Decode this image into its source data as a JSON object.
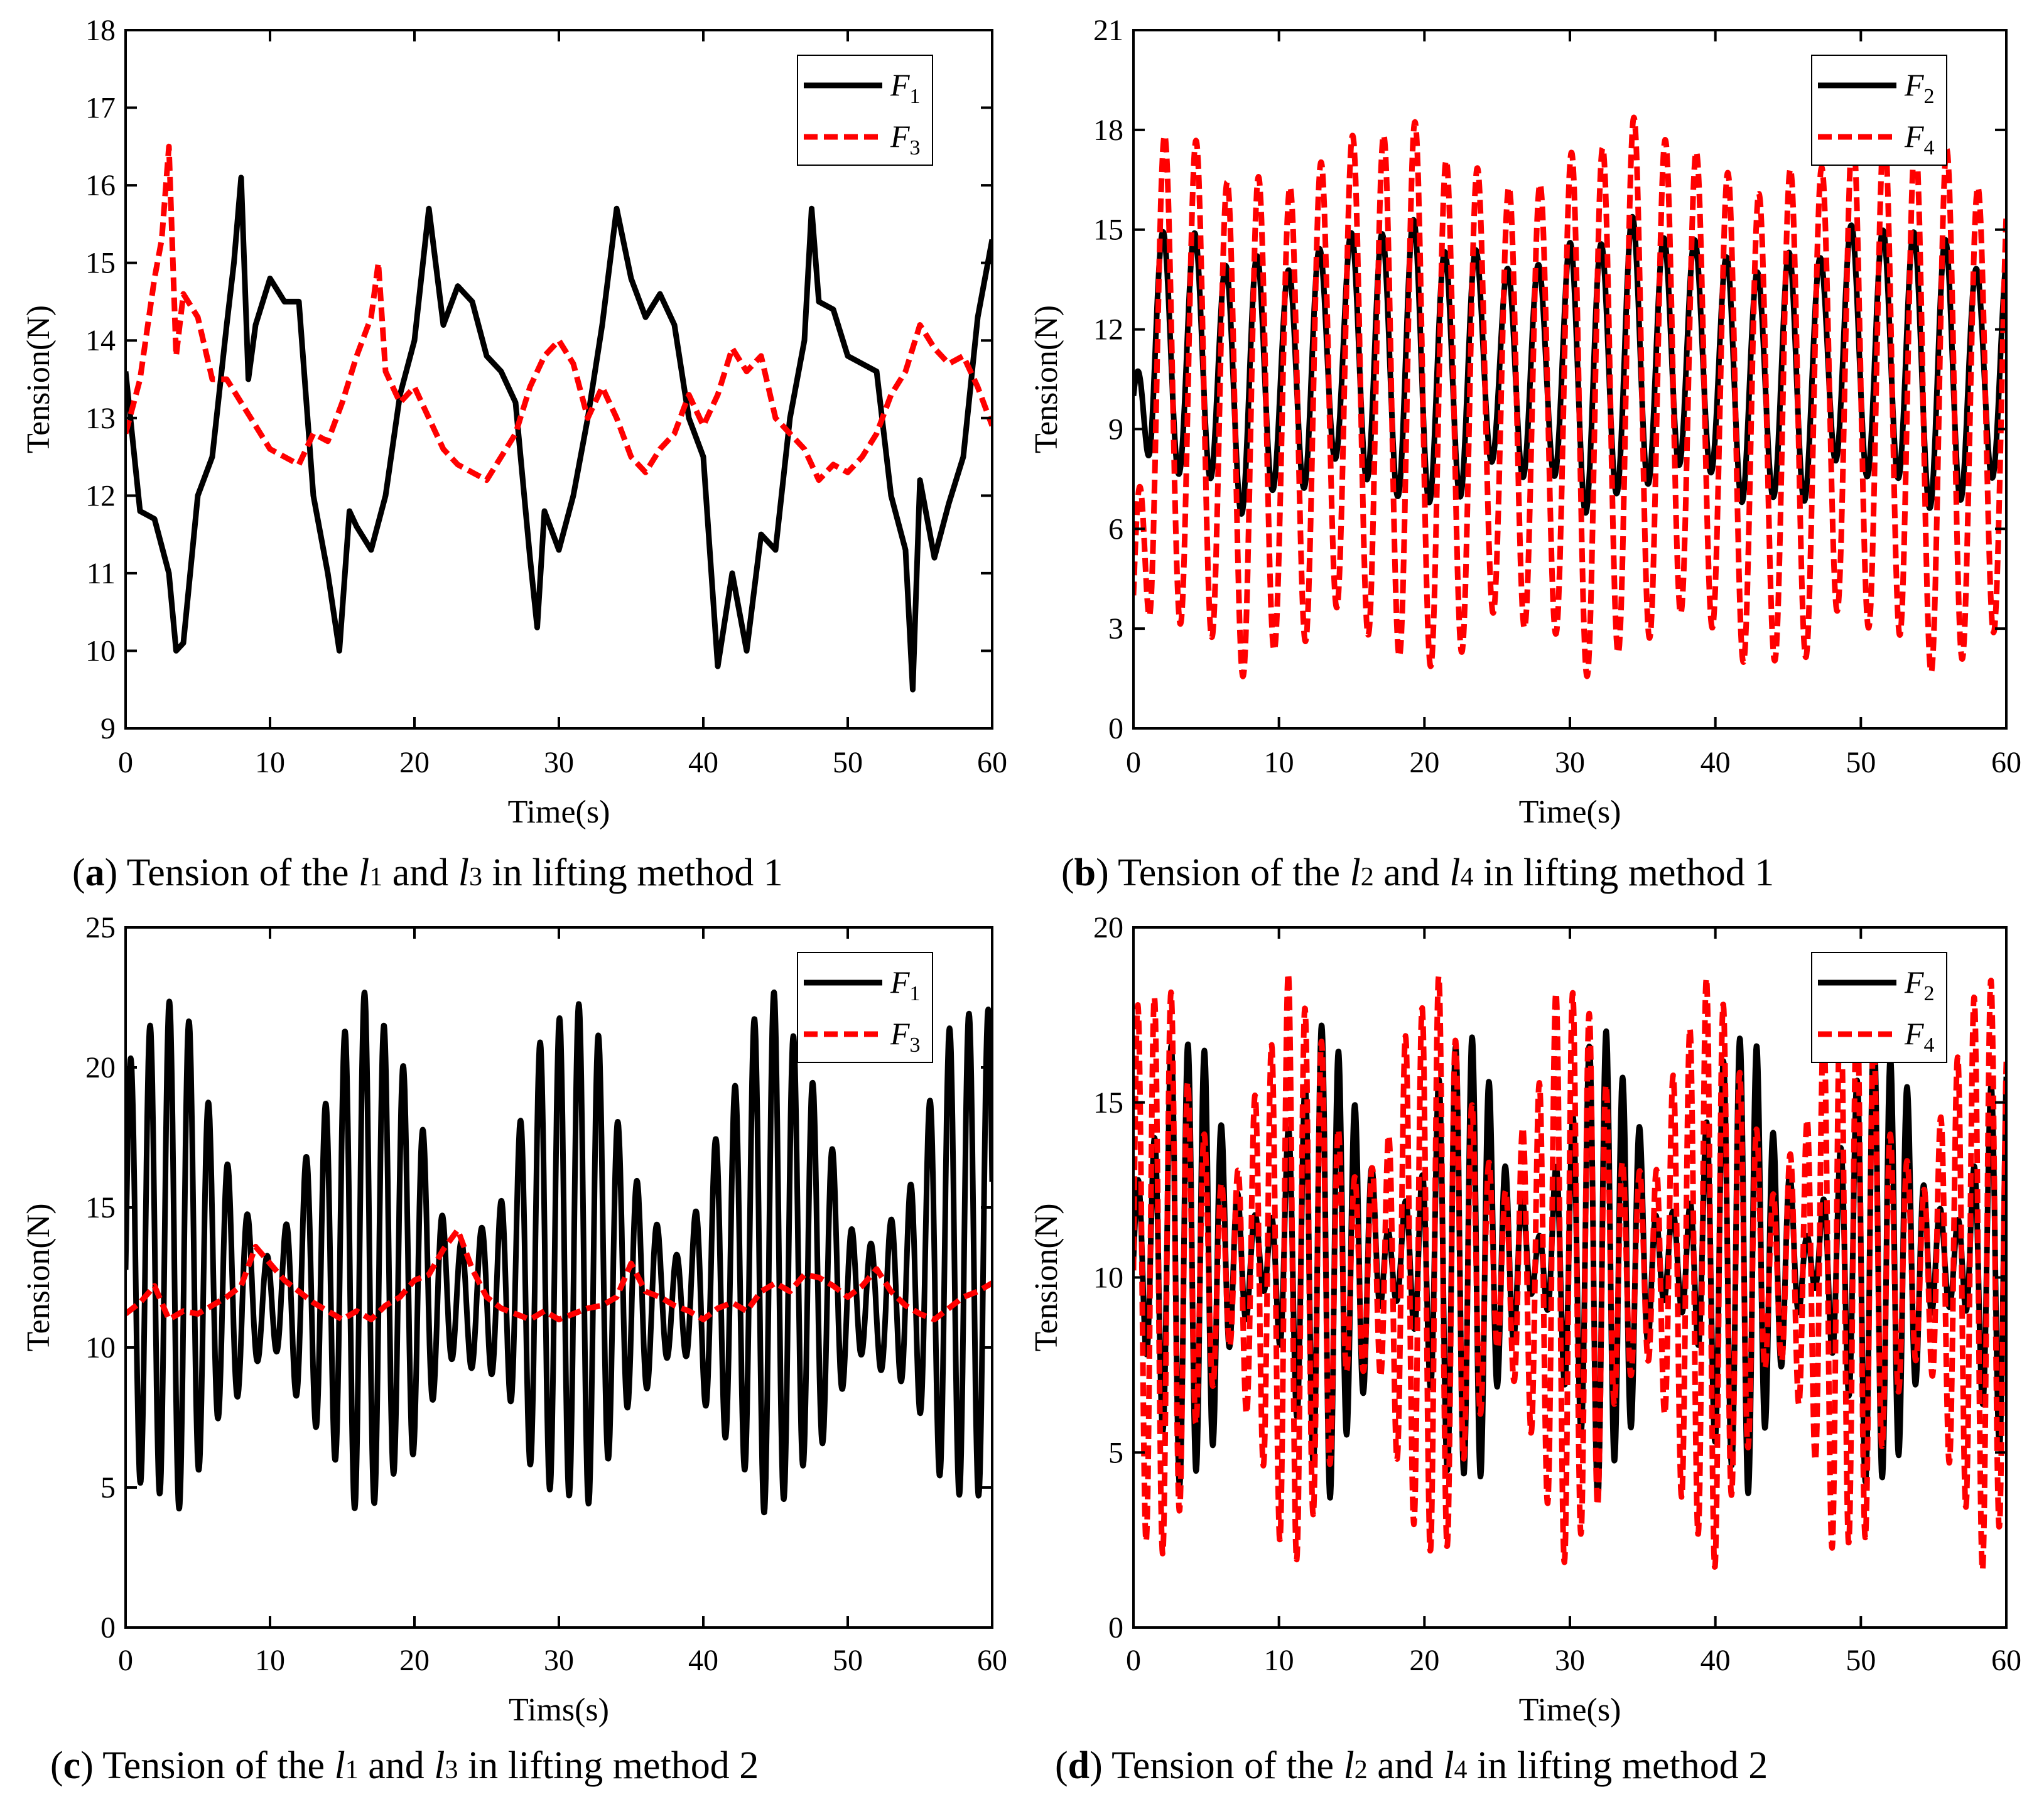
{
  "chart_data": [
    {
      "id": "a",
      "type": "line",
      "xlabel": "Time(s)",
      "ylabel": "Tension(N)",
      "xlim": [
        0,
        60
      ],
      "ylim": [
        9,
        18
      ],
      "xticks": [
        "0",
        "10",
        "20",
        "30",
        "40",
        "50",
        "60"
      ],
      "yticks": [
        "9",
        "10",
        "11",
        "12",
        "13",
        "14",
        "15",
        "16",
        "17",
        "18"
      ],
      "legend": {
        "position": "top-right",
        "entries": [
          {
            "main": "F",
            "sub": "1"
          },
          {
            "main": "F",
            "sub": "3"
          }
        ]
      },
      "caption": {
        "letter": "a",
        "pre": "Tension of the ",
        "v1": "l",
        "s1": "1",
        "mid": " and ",
        "v2": "l",
        "s2": "3",
        "post": " in lifting method 1"
      },
      "series": [
        {
          "name": "F1",
          "style": "solid",
          "color": "#000000",
          "x": [
            0,
            1,
            2,
            3,
            3.5,
            4,
            5,
            6,
            7,
            7.5,
            8,
            8.5,
            9,
            10,
            11,
            12,
            13,
            14,
            14.8,
            15.5,
            16,
            17,
            18,
            19,
            20,
            21,
            22,
            23,
            24,
            25,
            26,
            27,
            28,
            28.5,
            29,
            30,
            31,
            32,
            33,
            34,
            35,
            36,
            37,
            38,
            39,
            40,
            41,
            42,
            43,
            44,
            45,
            46,
            47,
            47.5,
            48,
            49,
            50,
            51,
            52,
            53,
            54,
            54.5,
            55,
            56,
            57,
            58,
            59,
            60
          ],
          "y": [
            13.6,
            11.8,
            11.7,
            11.0,
            10.0,
            10.1,
            12.0,
            12.5,
            14.2,
            15.0,
            16.1,
            13.5,
            14.2,
            14.8,
            14.5,
            14.5,
            12.0,
            11.0,
            10.0,
            11.8,
            11.6,
            11.3,
            12.0,
            13.3,
            14.0,
            15.7,
            14.2,
            14.7,
            14.5,
            13.8,
            13.6,
            13.2,
            11.2,
            10.3,
            11.8,
            11.3,
            12.0,
            13.0,
            14.2,
            15.7,
            14.8,
            14.3,
            14.6,
            14.2,
            13.0,
            12.5,
            9.8,
            11.0,
            10.0,
            11.5,
            11.3,
            13.0,
            14.0,
            15.7,
            14.5,
            14.4,
            13.8,
            13.7,
            13.6,
            12.0,
            11.3,
            9.5,
            12.2,
            11.2,
            11.9,
            12.5,
            14.3,
            15.3
          ]
        },
        {
          "name": "F3",
          "style": "dashed",
          "color": "#ff0000",
          "x": [
            0,
            1,
            2,
            2.5,
            3,
            3.5,
            4,
            5,
            6,
            7,
            8,
            9,
            10,
            11,
            12,
            13,
            14,
            15,
            16,
            17,
            17.5,
            18,
            19,
            20,
            21,
            22,
            23,
            24,
            25,
            26,
            27,
            28,
            29,
            30,
            31,
            32,
            33,
            34,
            35,
            36,
            37,
            38,
            39,
            40,
            41,
            42,
            43,
            44,
            45,
            46,
            47,
            48,
            49,
            50,
            51,
            52,
            53,
            54,
            55,
            56,
            57,
            58,
            59,
            60
          ],
          "y": [
            12.8,
            13.5,
            14.8,
            15.3,
            16.5,
            13.8,
            14.6,
            14.3,
            13.5,
            13.5,
            13.2,
            12.9,
            12.6,
            12.5,
            12.4,
            12.8,
            12.7,
            13.2,
            13.8,
            14.3,
            15.0,
            13.6,
            13.2,
            13.4,
            13.0,
            12.6,
            12.4,
            12.3,
            12.2,
            12.5,
            12.8,
            13.4,
            13.8,
            14.0,
            13.7,
            13.0,
            13.4,
            13.0,
            12.5,
            12.3,
            12.6,
            12.8,
            13.3,
            12.9,
            13.3,
            13.9,
            13.6,
            13.8,
            13.0,
            12.8,
            12.6,
            12.2,
            12.4,
            12.3,
            12.5,
            12.8,
            13.3,
            13.6,
            14.2,
            13.9,
            13.7,
            13.8,
            13.4,
            12.9
          ]
        }
      ]
    },
    {
      "id": "b",
      "type": "line",
      "xlabel": "Time(s)",
      "ylabel": "Tension(N)",
      "xlim": [
        0,
        60
      ],
      "ylim": [
        0,
        21
      ],
      "xticks": [
        "0",
        "10",
        "20",
        "30",
        "40",
        "50",
        "60"
      ],
      "yticks": [
        "0",
        "3",
        "6",
        "9",
        "12",
        "15",
        "18",
        "21"
      ],
      "legend": {
        "position": "top-right",
        "entries": [
          {
            "main": "F",
            "sub": "2"
          },
          {
            "main": "F",
            "sub": "4"
          }
        ]
      },
      "caption": {
        "letter": "b",
        "pre": "Tension of the ",
        "v1": "l",
        "s1": "2",
        "mid": " and ",
        "v2": "l",
        "s2": "4",
        "post": " in lifting method 1"
      },
      "series": [
        {
          "name": "F2",
          "style": "solid",
          "color": "#000000",
          "kind": "osc",
          "period": 2.15,
          "lo": 7.3,
          "hi": 14.5,
          "loAmp": 0.6,
          "hiAmp": 0.6,
          "phase": 0.3,
          "start": 10
        },
        {
          "name": "F4",
          "style": "dashed",
          "color": "#ff0000",
          "kind": "osc",
          "period": 2.15,
          "lo": 2.6,
          "hi": 17.2,
          "loAmp": 0.8,
          "hiAmp": 0.9,
          "phase": 0.0,
          "start": 4
        }
      ]
    },
    {
      "id": "c",
      "type": "line",
      "xlabel": "Tims(s)",
      "ylabel": "Tension(N)",
      "xlim": [
        0,
        60
      ],
      "ylim": [
        0,
        25
      ],
      "xticks": [
        "0",
        "10",
        "20",
        "30",
        "40",
        "50",
        "60"
      ],
      "yticks": [
        "0",
        "5",
        "10",
        "15",
        "20",
        "25"
      ],
      "legend": {
        "position": "top-right",
        "entries": [
          {
            "main": "F",
            "sub": "1"
          },
          {
            "main": "F",
            "sub": "3"
          }
        ]
      },
      "caption": {
        "letter": "c",
        "pre": "Tension of the ",
        "v1": "l",
        "s1": "1",
        "mid": " and ",
        "v2": "l",
        "s2": "3",
        "post": " in lifting method 2"
      },
      "series": [
        {
          "name": "F1",
          "style": "solid",
          "color": "#000000",
          "kind": "beat",
          "period": 1.35,
          "envPeriod": 14.0,
          "center": 12.5,
          "ampMin": 2.0,
          "ampMax": 9.0,
          "envPhase": 4.2,
          "drift": 3.5,
          "driftPeriod": 14.0
        },
        {
          "name": "F3",
          "style": "dashed",
          "color": "#ff0000",
          "x": [
            0,
            1,
            2,
            3,
            4,
            5,
            6,
            7,
            8,
            9,
            10,
            11,
            12,
            13,
            14,
            15,
            16,
            17,
            18,
            19,
            20,
            21,
            22,
            23,
            24,
            25,
            26,
            27,
            28,
            29,
            30,
            31,
            32,
            33,
            34,
            35,
            36,
            37,
            38,
            39,
            40,
            41,
            42,
            43,
            44,
            45,
            46,
            47,
            48,
            49,
            50,
            51,
            52,
            53,
            54,
            55,
            56,
            57,
            58,
            59,
            60
          ],
          "y": [
            11.2,
            11.6,
            12.2,
            11.0,
            11.3,
            11.2,
            11.5,
            11.8,
            12.2,
            13.6,
            13.0,
            12.4,
            12.0,
            11.6,
            11.3,
            11.0,
            11.3,
            11.0,
            11.5,
            11.8,
            12.4,
            12.6,
            13.5,
            14.2,
            12.8,
            11.8,
            11.4,
            11.2,
            11.0,
            11.3,
            11.0,
            11.2,
            11.4,
            11.5,
            11.8,
            13.0,
            12.0,
            11.8,
            11.5,
            11.3,
            11.0,
            11.4,
            11.6,
            11.3,
            12.0,
            12.3,
            12.0,
            12.6,
            12.5,
            12.2,
            11.8,
            12.2,
            12.8,
            12.0,
            11.5,
            11.2,
            11.0,
            11.4,
            11.8,
            12.0,
            12.3
          ]
        }
      ]
    },
    {
      "id": "d",
      "type": "line",
      "xlabel": "Time(s)",
      "ylabel": "Tension(N)",
      "xlim": [
        0,
        60
      ],
      "ylim": [
        0,
        20
      ],
      "xticks": [
        "0",
        "10",
        "20",
        "30",
        "40",
        "50",
        "60"
      ],
      "yticks": [
        "0",
        "5",
        "10",
        "15",
        "20"
      ],
      "legend": {
        "position": "top-right",
        "entries": [
          {
            "main": "F",
            "sub": "2"
          },
          {
            "main": "F",
            "sub": "4"
          }
        ]
      },
      "caption": {
        "letter": "d",
        "pre": "Tension of the ",
        "v1": "l",
        "s1": "2",
        "mid": " and ",
        "v2": "l",
        "s2": "4",
        "post": " in lifting method 2"
      },
      "series": [
        {
          "name": "F2",
          "style": "solid",
          "color": "#000000",
          "kind": "beat",
          "period": 1.15,
          "envPeriod": 9.5,
          "center": 10.5,
          "ampMin": 1.0,
          "ampMax": 6.5,
          "envPhase": 1.0,
          "drift": 0,
          "driftPeriod": 10
        },
        {
          "name": "F4",
          "style": "dashed",
          "color": "#ff0000",
          "kind": "beat",
          "period": 1.15,
          "envPeriod": 9.5,
          "center": 10.2,
          "ampMin": 2.5,
          "ampMax": 8.2,
          "envPhase": 3.2,
          "drift": 0,
          "driftPeriod": 10
        }
      ]
    }
  ]
}
